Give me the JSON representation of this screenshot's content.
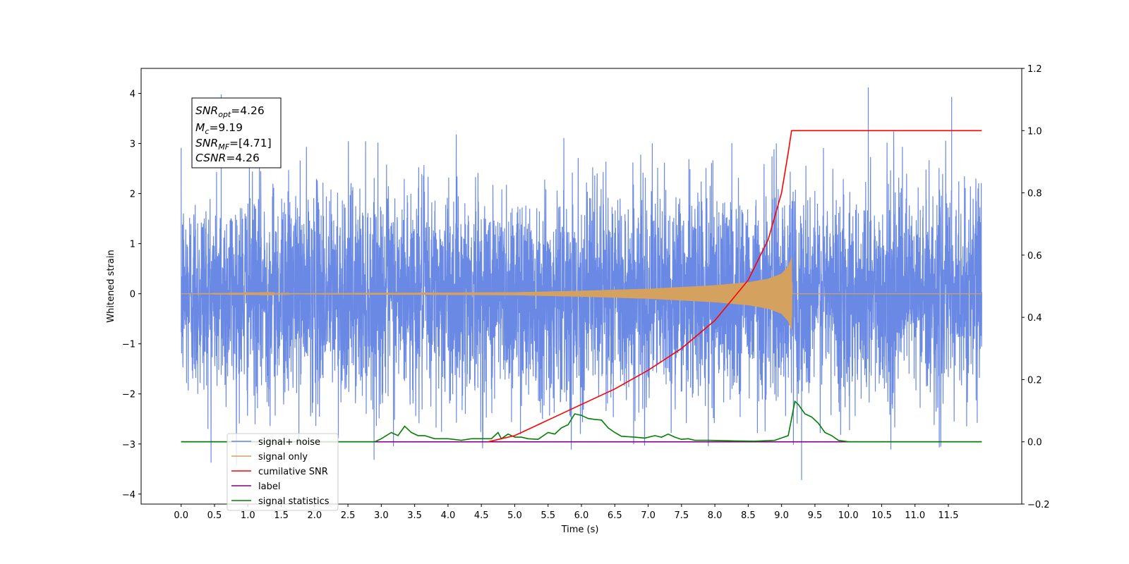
{
  "chart_data": {
    "type": "line",
    "xlabel": "Time (s)",
    "ylabel": "Whitened strain",
    "xlim": [
      -0.6,
      12.6
    ],
    "ylim": [
      -4.2,
      4.5
    ],
    "y2lim": [
      -0.2,
      1.2
    ],
    "grid": false,
    "legend_position": "lower-left",
    "x_ticks": [
      "0.0",
      "0.5",
      "1.0",
      "1.5",
      "2.0",
      "2.5",
      "3.0",
      "3.5",
      "4.0",
      "4.5",
      "5.0",
      "5.5",
      "6.0",
      "6.5",
      "7.0",
      "7.5",
      "8.0",
      "8.5",
      "9.0",
      "9.5",
      "10.0",
      "10.5",
      "11.0",
      "11.5"
    ],
    "y_ticks": [
      "4",
      "3",
      "2",
      "1",
      "0",
      "−1",
      "−2",
      "−3",
      "−4"
    ],
    "y2_ticks": [
      "1.2",
      "1.0",
      "0.8",
      "0.6",
      "0.4",
      "0.2",
      "0.0",
      "−0.2"
    ],
    "annotation": {
      "snr_opt": {
        "base": "SNR",
        "sub": "opt",
        "rest": "=4.26"
      },
      "mc": {
        "base": "M",
        "sub": "c",
        "rest": "=9.19"
      },
      "snr_mf": {
        "base": "SNR",
        "sub": "MF",
        "rest": "=[4.71]"
      },
      "csnr": {
        "base": "CSNR",
        "rest": "=4.26"
      }
    },
    "series": [
      {
        "name": "signal+ noise",
        "axis": "left",
        "color": "#6a89e4",
        "description_values": {
          "x_range": [
            0.0,
            12.0
          ],
          "noise_band": [
            -2.9,
            3.0
          ],
          "peaks": [
            [
              10.3,
              4.12
            ],
            [
              9.3,
              -3.72
            ],
            [
              0.6,
              3.98
            ],
            [
              11.55,
              3.93
            ]
          ]
        }
      },
      {
        "name": "signal only",
        "axis": "left",
        "color": "#d4a15f",
        "x": [
          0.0,
          5.0,
          6.0,
          7.0,
          8.0,
          8.5,
          8.8,
          9.0,
          9.1,
          9.15,
          9.16,
          12.0
        ],
        "amplitude": [
          0.0,
          0.03,
          0.06,
          0.1,
          0.17,
          0.23,
          0.3,
          0.4,
          0.55,
          0.72,
          0.0,
          0.0
        ]
      },
      {
        "name": "cumilative SNR",
        "axis": "right",
        "color": "#ff0000",
        "x": [
          4.6,
          5.0,
          5.5,
          6.0,
          6.5,
          7.0,
          7.5,
          8.0,
          8.5,
          8.8,
          9.0,
          9.1,
          9.15,
          12.0
        ],
        "y": [
          0.0,
          0.02,
          0.07,
          0.12,
          0.17,
          0.23,
          0.3,
          0.39,
          0.52,
          0.65,
          0.8,
          0.93,
          1.0,
          1.0
        ]
      },
      {
        "name": "label",
        "axis": "right",
        "color": "#800080",
        "x": [
          0.0,
          12.0
        ],
        "y": [
          0.0,
          0.0
        ]
      },
      {
        "name": "signal statistics",
        "axis": "right",
        "color": "#008000",
        "x": [
          0.0,
          2.9,
          3.0,
          3.15,
          3.25,
          3.35,
          3.45,
          3.55,
          3.65,
          3.8,
          4.0,
          4.2,
          4.35,
          4.5,
          4.65,
          4.75,
          4.8,
          4.9,
          5.0,
          5.1,
          5.2,
          5.35,
          5.5,
          5.6,
          5.7,
          5.8,
          5.9,
          6.0,
          6.1,
          6.2,
          6.3,
          6.4,
          6.5,
          6.6,
          6.8,
          6.95,
          7.1,
          7.2,
          7.3,
          7.4,
          7.5,
          7.6,
          7.7,
          7.9,
          8.1,
          8.3,
          8.6,
          8.9,
          9.1,
          9.2,
          9.25,
          9.35,
          9.45,
          9.55,
          9.65,
          9.75,
          9.85,
          10.0,
          12.0
        ],
        "y": [
          0.0,
          0.0,
          0.01,
          0.03,
          0.02,
          0.05,
          0.03,
          0.02,
          0.02,
          0.01,
          0.01,
          0.005,
          0.01,
          0.01,
          0.01,
          0.03,
          0.01,
          0.025,
          0.015,
          0.015,
          0.01,
          0.008,
          0.03,
          0.025,
          0.045,
          0.055,
          0.09,
          0.085,
          0.075,
          0.072,
          0.07,
          0.045,
          0.03,
          0.018,
          0.015,
          0.012,
          0.02,
          0.015,
          0.025,
          0.015,
          0.008,
          0.01,
          0.005,
          0.005,
          0.004,
          0.003,
          0.002,
          0.005,
          0.02,
          0.13,
          0.12,
          0.09,
          0.08,
          0.06,
          0.03,
          0.02,
          0.005,
          0.0,
          0.0
        ]
      }
    ]
  }
}
